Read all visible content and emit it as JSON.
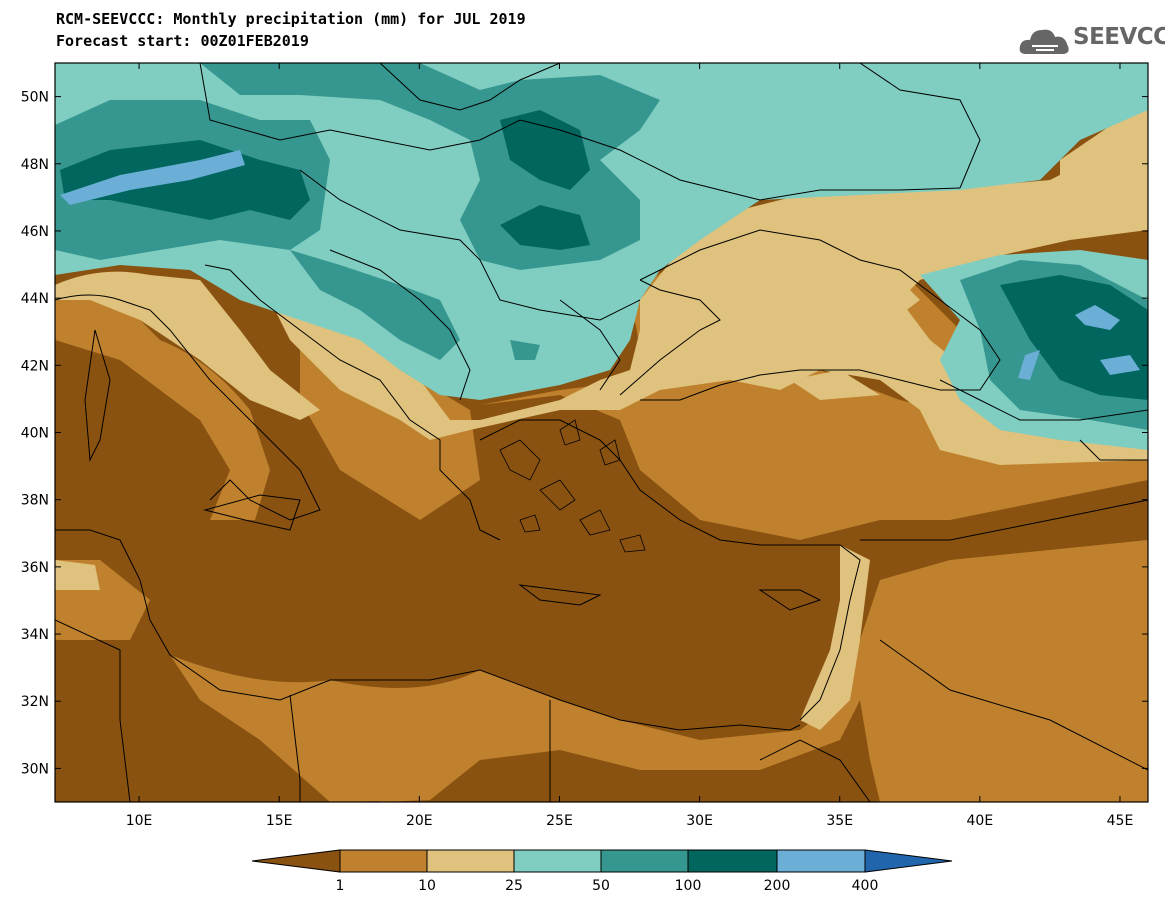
{
  "header": {
    "title_line1": "RCM-SEEVCCC: Monthly precipitation (mm) for JUL 2019",
    "title_line2": "Forecast start: 00Z01FEB2019"
  },
  "logo": {
    "text": "SEEVCCC",
    "icon": "cloud-icon"
  },
  "axes": {
    "lat_labels": [
      "50N",
      "48N",
      "46N",
      "44N",
      "42N",
      "40N",
      "38N",
      "36N",
      "34N",
      "32N",
      "30N"
    ],
    "lon_labels": [
      "10E",
      "15E",
      "20E",
      "25E",
      "30E",
      "35E",
      "40E",
      "45E"
    ],
    "lon_range": [
      7,
      46
    ],
    "lat_range": [
      29,
      51
    ]
  },
  "colorbar": {
    "labels": [
      "1",
      "10",
      "25",
      "50",
      "100",
      "200",
      "400"
    ],
    "colors": [
      "#8a5210",
      "#bf812d",
      "#dfc27d",
      "#80cdc1",
      "#35978f",
      "#01665e",
      "#6baed6",
      "#2166ac"
    ]
  }
}
